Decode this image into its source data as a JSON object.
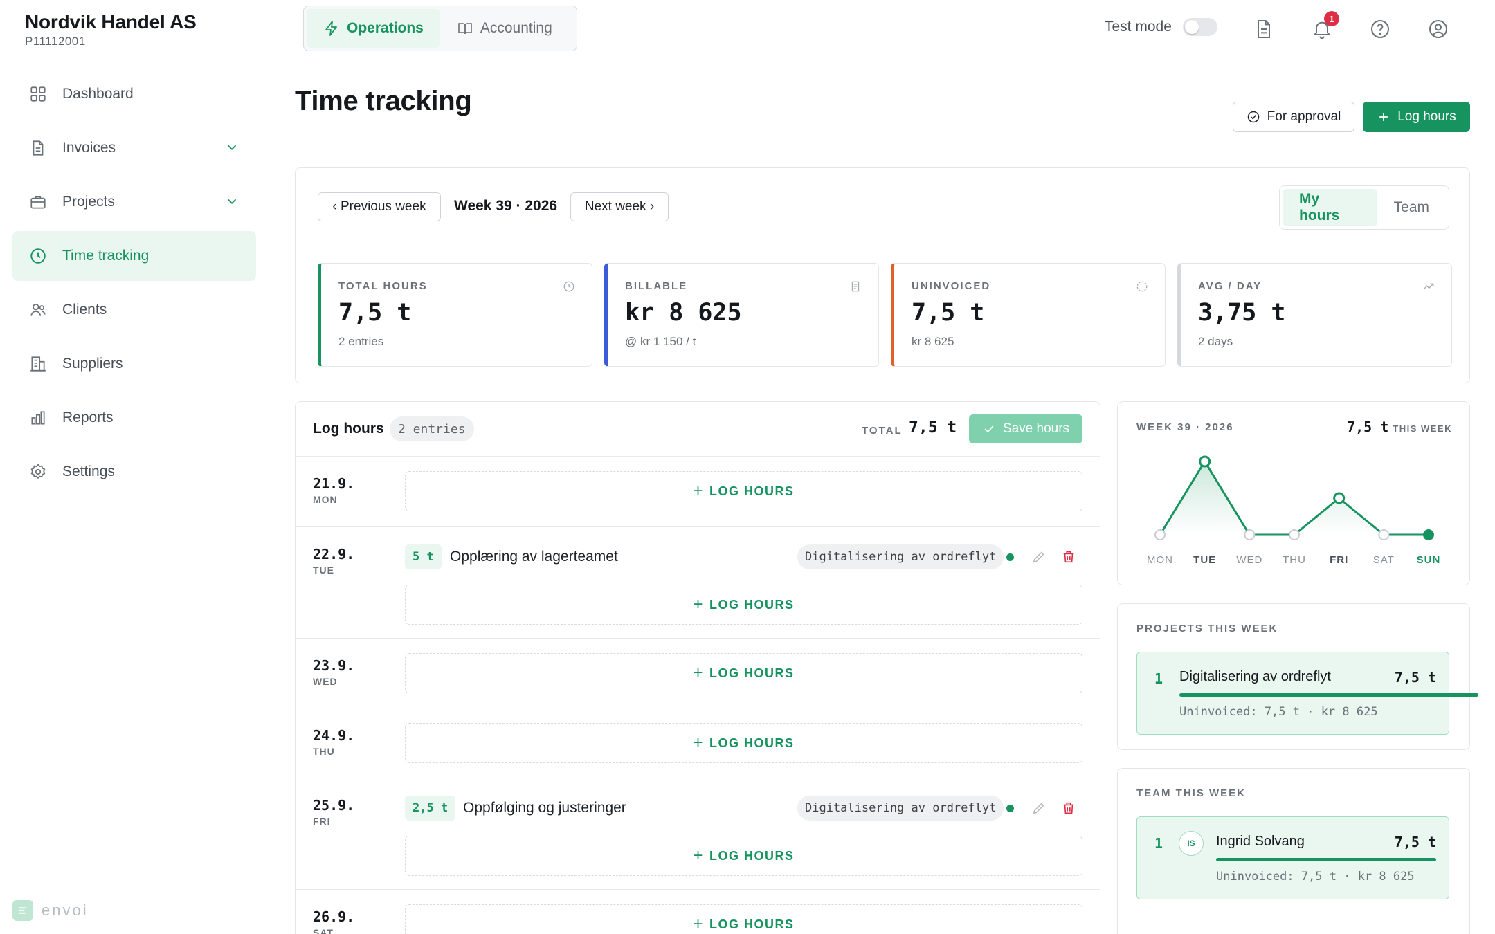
{
  "company": {
    "name": "Nordvik Handel AS",
    "id": "P11112001"
  },
  "sidebar": {
    "items": [
      {
        "label": "Dashboard",
        "icon": "grid-icon"
      },
      {
        "label": "Invoices",
        "icon": "file-icon",
        "expandable": true
      },
      {
        "label": "Projects",
        "icon": "briefcase-icon",
        "expandable": true
      },
      {
        "label": "Time tracking",
        "icon": "clock-icon",
        "active": true
      },
      {
        "label": "Clients",
        "icon": "users-icon"
      },
      {
        "label": "Suppliers",
        "icon": "building-icon"
      },
      {
        "label": "Reports",
        "icon": "bar-chart-icon"
      },
      {
        "label": "Settings",
        "icon": "gear-icon"
      }
    ],
    "brand": "envoi"
  },
  "topbar": {
    "modes": [
      {
        "label": "Operations",
        "active": true
      },
      {
        "label": "Accounting",
        "active": false
      }
    ],
    "test_mode_label": "Test mode",
    "test_mode_on": false,
    "notification_count": "1"
  },
  "header": {
    "title": "Time tracking",
    "for_approval_label": "For approval",
    "log_hours_label": "Log hours"
  },
  "week": {
    "prev_label": "‹ Previous week",
    "label": "Week 39 · 2026",
    "next_label": "Next week ›",
    "view_options": [
      {
        "label": "My hours",
        "active": true
      },
      {
        "label": "Team",
        "active": false
      }
    ]
  },
  "stats": [
    {
      "label": "TOTAL HOURS",
      "value": "7,5 t",
      "sub": "2 entries",
      "color": "#17935f",
      "icon": "clock-icon"
    },
    {
      "label": "BILLABLE",
      "value": "kr 8 625",
      "sub": "@ kr 1 150 / t",
      "color": "#3b5bdb",
      "icon": "receipt-icon"
    },
    {
      "label": "UNINVOICED",
      "value": "7,5 t",
      "sub": "kr 8 625",
      "color": "#e0602b",
      "icon": "loader-icon"
    },
    {
      "label": "AVG / DAY",
      "value": "3,75 t",
      "sub": "2 days",
      "color": "#d5d8dc",
      "icon": "trending-up-icon"
    }
  ],
  "log": {
    "title": "Log hours",
    "entries_badge": "2 entries",
    "total_label": "TOTAL",
    "total_value": "7,5 t",
    "save_label": "Save hours",
    "add_label": "LOG HOURS",
    "days": [
      {
        "date": "21.9.",
        "weekday": "MON",
        "entries": []
      },
      {
        "date": "22.9.",
        "weekday": "TUE",
        "entries": [
          {
            "hours": "5 t",
            "description": "Opplæring av lagerteamet",
            "project": "Digitalisering av ordreflyt"
          }
        ]
      },
      {
        "date": "23.9.",
        "weekday": "WED",
        "entries": []
      },
      {
        "date": "24.9.",
        "weekday": "THU",
        "entries": []
      },
      {
        "date": "25.9.",
        "weekday": "FRI",
        "entries": [
          {
            "hours": "2,5 t",
            "description": "Oppfølging og justeringer",
            "project": "Digitalisering av ordreflyt"
          }
        ]
      },
      {
        "date": "26.9.",
        "weekday": "SAT",
        "entries": []
      }
    ]
  },
  "chart_data": {
    "type": "line",
    "title": "WEEK 39 · 2026",
    "total": "7,5 t",
    "total_suffix": "THIS WEEK",
    "categories": [
      "MON",
      "TUE",
      "WED",
      "THU",
      "FRI",
      "SAT",
      "SUN"
    ],
    "values": [
      0,
      5,
      0,
      0,
      2.5,
      0,
      0
    ],
    "highlight": [
      "TUE",
      "FRI",
      "SUN"
    ],
    "ylim": [
      0,
      5
    ],
    "color": "#17935f"
  },
  "projects_week": {
    "title": "PROJECTS THIS WEEK",
    "items": [
      {
        "rank": "1",
        "name": "Digitalisering av ordreflyt",
        "value": "7,5 t",
        "share": 1.0,
        "sub": "Uninvoiced: 7,5 t · kr 8 625"
      }
    ]
  },
  "team_week": {
    "title": "TEAM THIS WEEK",
    "items": [
      {
        "rank": "1",
        "initials": "IS",
        "name": "Ingrid Solvang",
        "value": "7,5 t",
        "share": 1.0,
        "sub": "Uninvoiced: 7,5 t · kr 8 625"
      }
    ]
  }
}
